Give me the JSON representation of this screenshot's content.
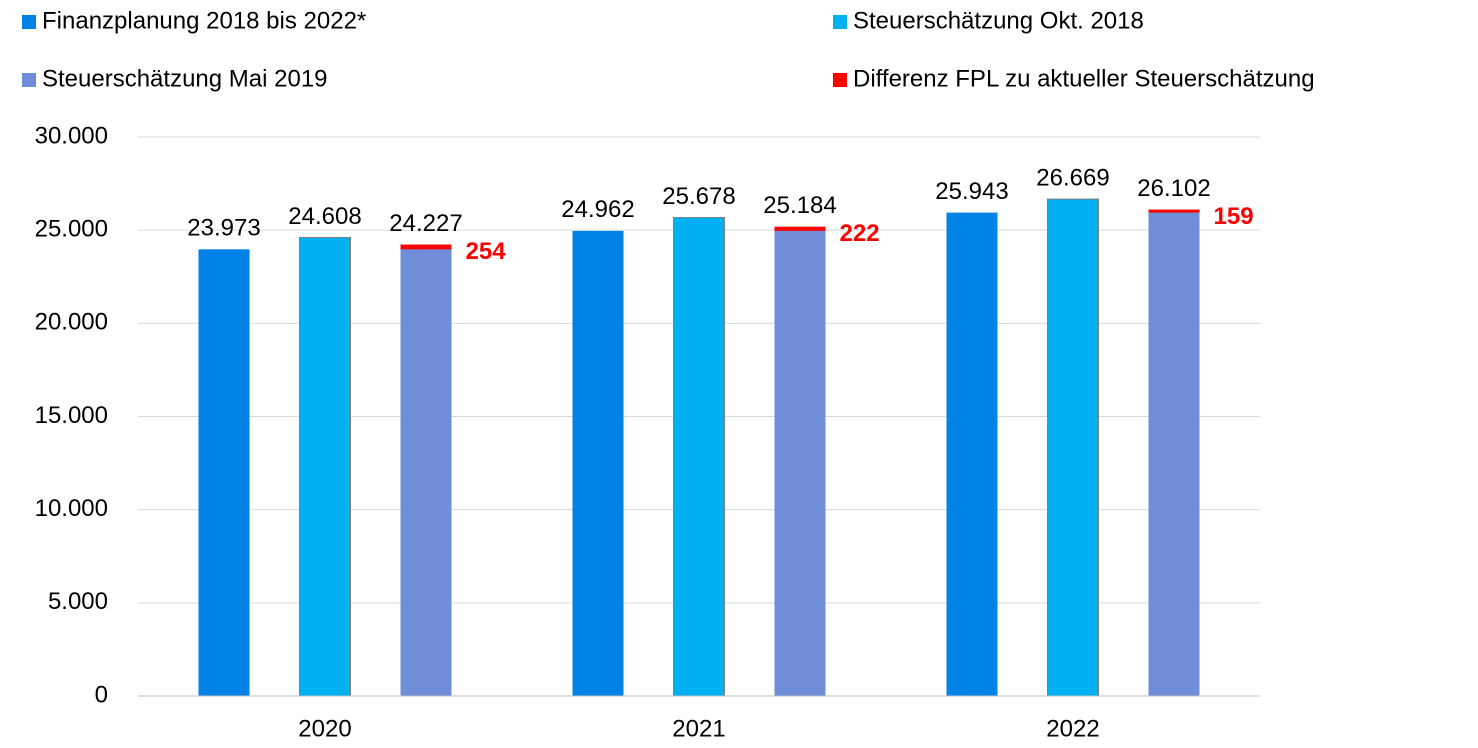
{
  "chart_data": {
    "type": "bar",
    "categories": [
      "2020",
      "2021",
      "2022"
    ],
    "series": [
      {
        "name": "Finanzplanung 2018 bis 2022*",
        "color": "#0082e6",
        "values": [
          23973,
          24962,
          25943
        ],
        "value_labels": [
          "23.973",
          "24.962",
          "25.943"
        ]
      },
      {
        "name": "Steuerschätzung Okt. 2018",
        "color": "#00b0f0",
        "values": [
          24608,
          25678,
          26669
        ],
        "value_labels": [
          "24.608",
          "25.678",
          "26.669"
        ]
      },
      {
        "name": "Steuerschätzung Mai 2019",
        "color": "#6f8dd8",
        "values": [
          24227,
          25184,
          26102
        ],
        "value_labels": [
          "24.227",
          "25.184",
          "26.102"
        ]
      },
      {
        "name": "Differenz FPL zu aktueller Steuerschätzung",
        "color": "#ff0000",
        "values": [
          254,
          222,
          159
        ]
      }
    ],
    "ylim": [
      0,
      30000
    ],
    "yticks": [
      0,
      {
        "value": 5000,
        "label": "5.000"
      },
      {
        "value": 10000,
        "label": "10.000"
      },
      {
        "value": 15000,
        "label": "15.000"
      },
      {
        "value": 20000,
        "label": "20.000"
      },
      {
        "value": 25000,
        "label": "25.000"
      },
      {
        "value": 30000,
        "label": "30.000"
      }
    ],
    "grid": true
  }
}
